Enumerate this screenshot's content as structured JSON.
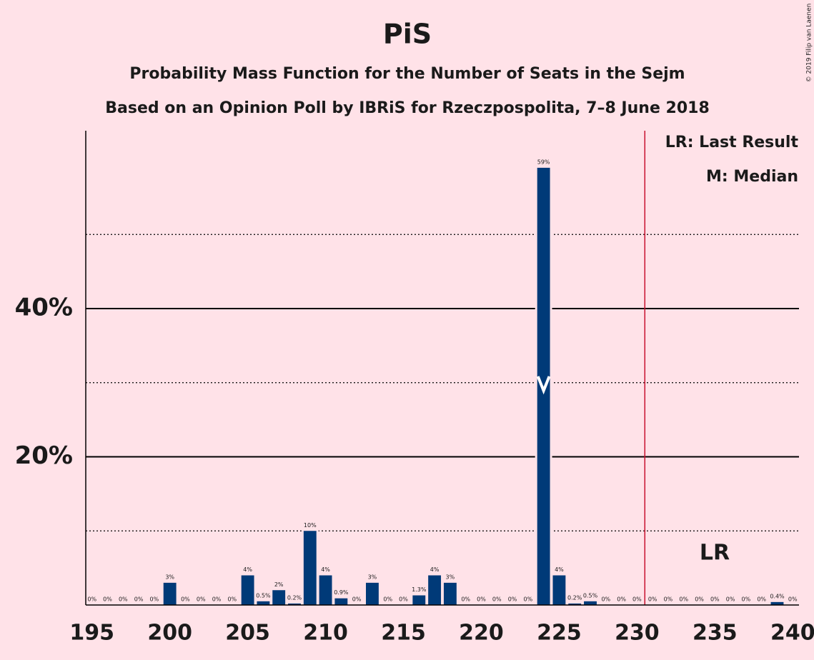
{
  "chart_data": {
    "type": "bar",
    "title": "PiS",
    "subtitle": "Probability Mass Function for the Number of Seats in the Sejm",
    "subtitle2": "Based on an Opinion Poll by IBRiS for Rzeczpospolita, 7–8 June 2018",
    "copyright": "© 2019 Filip van Laenen",
    "legend": [
      "LR: Last Result",
      "M: Median"
    ],
    "x": [
      195,
      196,
      197,
      198,
      199,
      200,
      201,
      202,
      203,
      204,
      205,
      206,
      207,
      208,
      209,
      210,
      211,
      212,
      213,
      214,
      215,
      216,
      217,
      218,
      219,
      220,
      221,
      222,
      223,
      224,
      225,
      226,
      227,
      228,
      229,
      230,
      231,
      232,
      233,
      234,
      235,
      236,
      237,
      238,
      239,
      240
    ],
    "values": [
      0,
      0,
      0,
      0,
      0,
      3,
      0,
      0,
      0,
      0,
      4,
      0.5,
      2,
      0.2,
      10,
      4,
      0.9,
      0,
      3,
      0,
      0,
      1.3,
      4,
      3,
      0,
      0,
      0,
      0,
      0,
      59,
      4,
      0.2,
      0.5,
      0,
      0,
      0,
      0,
      0,
      0,
      0,
      0,
      0,
      0,
      0,
      0.4,
      0
    ],
    "value_labels": [
      "0%",
      "0%",
      "0%",
      "0%",
      "0%",
      "3%",
      "0%",
      "0%",
      "0%",
      "0%",
      "4%",
      "0.5%",
      "2%",
      "0.2%",
      "10%",
      "4%",
      "0.9%",
      "0%",
      "3%",
      "0%",
      "0%",
      "1.3%",
      "4%",
      "3%",
      "0%",
      "0%",
      "0%",
      "0%",
      "0%",
      "59%",
      "4%",
      "0.2%",
      "0.5%",
      "0%",
      "0%",
      "0%",
      "0%",
      "0%",
      "0%",
      "0%",
      "0%",
      "0%",
      "0%",
      "0%",
      "0.4%",
      "0%"
    ],
    "color": "#003a78",
    "xlim": [
      194.6,
      240.4
    ],
    "xticks": [
      195,
      200,
      205,
      210,
      215,
      220,
      225,
      230,
      235,
      240
    ],
    "ylim": [
      0,
      64
    ],
    "yticks": [
      {
        "value": 20,
        "label": "20%"
      },
      {
        "value": 40,
        "label": "40%"
      }
    ],
    "minor_yticks": [
      10,
      30,
      50
    ],
    "median": 224,
    "last_result": {
      "value": 230.5,
      "label": "LR",
      "color": "#c8102e"
    }
  }
}
